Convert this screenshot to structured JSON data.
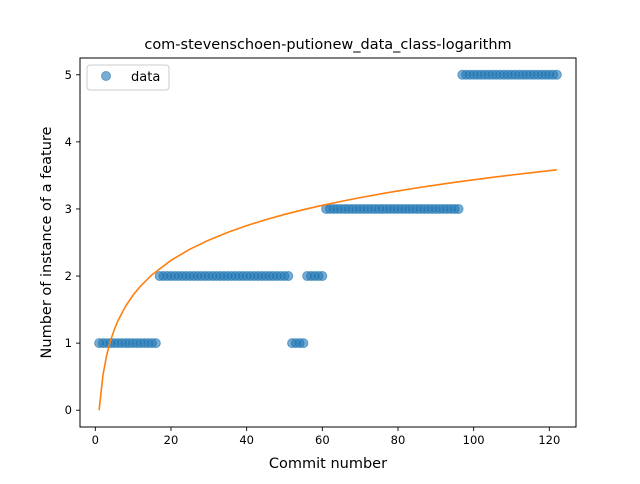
{
  "chart_data": {
    "type": "scatter",
    "title": "com-stevenschoen-putionew_data_class-logarithm",
    "xlabel": "Commit number",
    "ylabel": "Number of instance of a feature",
    "xlim": [
      -4.05,
      127.05
    ],
    "ylim": [
      -0.25,
      5.25
    ],
    "xticks": [
      0,
      20,
      40,
      60,
      80,
      100,
      120
    ],
    "yticks": [
      0,
      1,
      2,
      3,
      4,
      5
    ],
    "grid": false,
    "legend": {
      "position": "top-left",
      "entries": [
        "data"
      ]
    },
    "series": [
      {
        "name": "data",
        "kind": "scatter",
        "color": "#1f77b4",
        "points": [
          [
            1,
            1
          ],
          [
            2,
            1
          ],
          [
            3,
            1
          ],
          [
            4,
            1
          ],
          [
            5,
            1
          ],
          [
            6,
            1
          ],
          [
            7,
            1
          ],
          [
            8,
            1
          ],
          [
            9,
            1
          ],
          [
            10,
            1
          ],
          [
            11,
            1
          ],
          [
            12,
            1
          ],
          [
            13,
            1
          ],
          [
            14,
            1
          ],
          [
            15,
            1
          ],
          [
            16,
            1
          ],
          [
            17,
            2
          ],
          [
            18,
            2
          ],
          [
            19,
            2
          ],
          [
            20,
            2
          ],
          [
            21,
            2
          ],
          [
            22,
            2
          ],
          [
            23,
            2
          ],
          [
            24,
            2
          ],
          [
            25,
            2
          ],
          [
            26,
            2
          ],
          [
            27,
            2
          ],
          [
            28,
            2
          ],
          [
            29,
            2
          ],
          [
            30,
            2
          ],
          [
            31,
            2
          ],
          [
            32,
            2
          ],
          [
            33,
            2
          ],
          [
            34,
            2
          ],
          [
            35,
            2
          ],
          [
            36,
            2
          ],
          [
            37,
            2
          ],
          [
            38,
            2
          ],
          [
            39,
            2
          ],
          [
            40,
            2
          ],
          [
            41,
            2
          ],
          [
            42,
            2
          ],
          [
            43,
            2
          ],
          [
            44,
            2
          ],
          [
            45,
            2
          ],
          [
            46,
            2
          ],
          [
            47,
            2
          ],
          [
            48,
            2
          ],
          [
            49,
            2
          ],
          [
            50,
            2
          ],
          [
            51,
            2
          ],
          [
            52,
            1
          ],
          [
            53,
            1
          ],
          [
            54,
            1
          ],
          [
            55,
            1
          ],
          [
            56,
            2
          ],
          [
            57,
            2
          ],
          [
            58,
            2
          ],
          [
            59,
            2
          ],
          [
            60,
            2
          ],
          [
            61,
            3
          ],
          [
            62,
            3
          ],
          [
            63,
            3
          ],
          [
            64,
            3
          ],
          [
            65,
            3
          ],
          [
            66,
            3
          ],
          [
            67,
            3
          ],
          [
            68,
            3
          ],
          [
            69,
            3
          ],
          [
            70,
            3
          ],
          [
            71,
            3
          ],
          [
            72,
            3
          ],
          [
            73,
            3
          ],
          [
            74,
            3
          ],
          [
            75,
            3
          ],
          [
            76,
            3
          ],
          [
            77,
            3
          ],
          [
            78,
            3
          ],
          [
            79,
            3
          ],
          [
            80,
            3
          ],
          [
            81,
            3
          ],
          [
            82,
            3
          ],
          [
            83,
            3
          ],
          [
            84,
            3
          ],
          [
            85,
            3
          ],
          [
            86,
            3
          ],
          [
            87,
            3
          ],
          [
            88,
            3
          ],
          [
            89,
            3
          ],
          [
            90,
            3
          ],
          [
            91,
            3
          ],
          [
            92,
            3
          ],
          [
            93,
            3
          ],
          [
            94,
            3
          ],
          [
            95,
            3
          ],
          [
            96,
            3
          ],
          [
            97,
            5
          ],
          [
            98,
            5
          ],
          [
            99,
            5
          ],
          [
            100,
            5
          ],
          [
            101,
            5
          ],
          [
            102,
            5
          ],
          [
            103,
            5
          ],
          [
            104,
            5
          ],
          [
            105,
            5
          ],
          [
            106,
            5
          ],
          [
            107,
            5
          ],
          [
            108,
            5
          ],
          [
            109,
            5
          ],
          [
            110,
            5
          ],
          [
            111,
            5
          ],
          [
            112,
            5
          ],
          [
            113,
            5
          ],
          [
            114,
            5
          ],
          [
            115,
            5
          ],
          [
            116,
            5
          ],
          [
            117,
            5
          ],
          [
            118,
            5
          ],
          [
            119,
            5
          ],
          [
            120,
            5
          ],
          [
            121,
            5
          ],
          [
            122,
            5
          ]
        ]
      },
      {
        "kind": "line",
        "color": "#ff7f0e",
        "points": [
          [
            1,
            0.0
          ],
          [
            2,
            0.517
          ],
          [
            3,
            0.819
          ],
          [
            4,
            1.034
          ],
          [
            5,
            1.2
          ],
          [
            6,
            1.336
          ],
          [
            8,
            1.551
          ],
          [
            10,
            1.717
          ],
          [
            12,
            1.853
          ],
          [
            15,
            2.02
          ],
          [
            20,
            2.234
          ],
          [
            25,
            2.4
          ],
          [
            30,
            2.536
          ],
          [
            35,
            2.651
          ],
          [
            40,
            2.751
          ],
          [
            45,
            2.839
          ],
          [
            50,
            2.918
          ],
          [
            55,
            2.989
          ],
          [
            60,
            3.054
          ],
          [
            65,
            3.113
          ],
          [
            70,
            3.169
          ],
          [
            75,
            3.22
          ],
          [
            80,
            3.268
          ],
          [
            85,
            3.314
          ],
          [
            90,
            3.356
          ],
          [
            95,
            3.397
          ],
          [
            100,
            3.435
          ],
          [
            105,
            3.472
          ],
          [
            110,
            3.506
          ],
          [
            115,
            3.539
          ],
          [
            120,
            3.571
          ],
          [
            122,
            3.583
          ]
        ]
      }
    ]
  }
}
